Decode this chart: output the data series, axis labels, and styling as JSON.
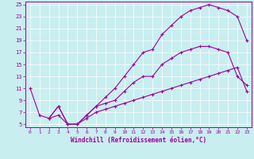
{
  "xlabel": "Windchill (Refroidissement éolien,°C)",
  "bg_color": "#c8eef0",
  "line_color": "#9b009b",
  "grid_color": "#ffffff",
  "spine_color": "#9b009b",
  "xlim": [
    -0.5,
    23.5
  ],
  "ylim": [
    4.5,
    25.5
  ],
  "yticks": [
    5,
    7,
    9,
    11,
    13,
    15,
    17,
    19,
    21,
    23,
    25
  ],
  "xticks": [
    0,
    1,
    2,
    3,
    4,
    5,
    6,
    7,
    8,
    9,
    10,
    11,
    12,
    13,
    14,
    15,
    16,
    17,
    18,
    19,
    20,
    21,
    22,
    23
  ],
  "line1_x": [
    0,
    1,
    2,
    3,
    4,
    5,
    6,
    7,
    8,
    9,
    10,
    11,
    12,
    13,
    14,
    15,
    16,
    17,
    18,
    19,
    20,
    21,
    22,
    23
  ],
  "line1_y": [
    11,
    6.5,
    6.0,
    8.0,
    5.0,
    5.0,
    6.5,
    8.0,
    9.5,
    11.0,
    13.0,
    15.0,
    17.0,
    17.5,
    20.0,
    21.5,
    23.0,
    24.0,
    24.5,
    25.0,
    24.5,
    24.0,
    23.0,
    19.0
  ],
  "line2_x": [
    2,
    3,
    4,
    5,
    6,
    7,
    8,
    9,
    10,
    11,
    12,
    13,
    14,
    15,
    16,
    17,
    18,
    19,
    20,
    21,
    22,
    23
  ],
  "line2_y": [
    6.0,
    8.0,
    5.0,
    5.0,
    6.5,
    8.0,
    8.5,
    9.0,
    10.5,
    12.0,
    13.0,
    13.0,
    15.0,
    16.0,
    17.0,
    17.5,
    18.0,
    18.0,
    17.5,
    17.0,
    13.0,
    11.5
  ],
  "line3_x": [
    2,
    3,
    4,
    5,
    6,
    7,
    8,
    9,
    10,
    11,
    12,
    13,
    14,
    15,
    16,
    17,
    18,
    19,
    20,
    21,
    22,
    23
  ],
  "line3_y": [
    6.0,
    6.5,
    5.0,
    5.0,
    6.0,
    7.0,
    7.5,
    8.0,
    8.5,
    9.0,
    9.5,
    10.0,
    10.5,
    11.0,
    11.5,
    12.0,
    12.5,
    13.0,
    13.5,
    14.0,
    14.5,
    10.5
  ]
}
